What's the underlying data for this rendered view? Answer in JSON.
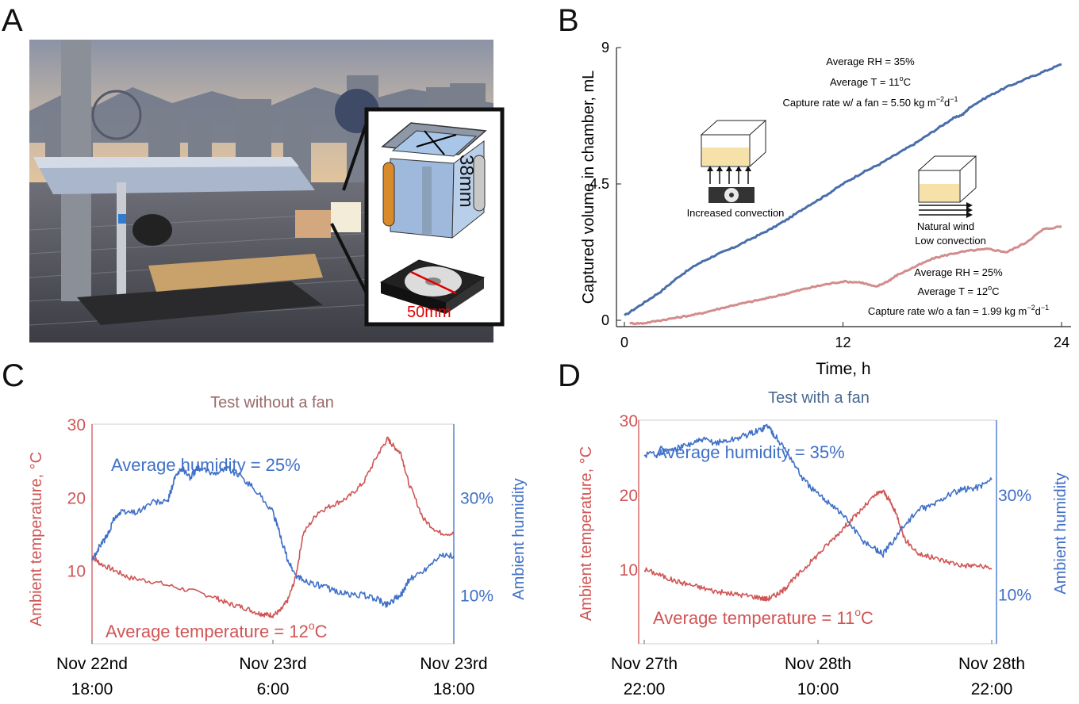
{
  "panels": {
    "a": "A",
    "b": "B",
    "c": "C",
    "d": "D"
  },
  "photo": {
    "inset_dim_height": "38mm",
    "inset_dim_width": "50mm",
    "colors": {
      "sky_top": "#8b93a6",
      "sky_bottom": "#e8c79a",
      "roof": "#56565c",
      "frame": "#111111",
      "dim_red": "#e00000"
    }
  },
  "chart_data": [
    {
      "id": "B",
      "type": "line",
      "xlabel": "Time, h",
      "ylabel": "Captured volume in chamber, mL",
      "xlim": [
        0,
        24
      ],
      "ylim": [
        0,
        9
      ],
      "xticks": [
        "0",
        "12",
        "24"
      ],
      "yticks": [
        "0",
        "4.5",
        "9"
      ],
      "series": [
        {
          "name": "with fan",
          "color": "#4a6eab",
          "x": [
            0,
            1,
            2,
            3,
            4,
            5,
            6,
            7,
            8,
            9,
            10,
            11,
            12,
            13,
            14,
            15,
            16,
            17,
            18,
            18.6,
            19,
            20,
            21,
            22,
            23,
            24
          ],
          "y": [
            0.15,
            0.55,
            0.95,
            1.45,
            1.85,
            2.15,
            2.4,
            2.7,
            3.0,
            3.35,
            3.75,
            4.1,
            4.5,
            4.85,
            5.15,
            5.5,
            5.85,
            6.25,
            6.65,
            6.8,
            7.05,
            7.4,
            7.7,
            7.95,
            8.2,
            8.45
          ]
        },
        {
          "name": "without fan",
          "color": "#d38c8c",
          "x": [
            0.3,
            1,
            2,
            3,
            4,
            5,
            6,
            7,
            8,
            9,
            10,
            11,
            12,
            13,
            13.8,
            14.5,
            15,
            16,
            17,
            18,
            19,
            20,
            21,
            22,
            23,
            24
          ],
          "y": [
            -0.1,
            -0.1,
            0.0,
            0.1,
            0.2,
            0.35,
            0.5,
            0.62,
            0.75,
            0.9,
            1.05,
            1.18,
            1.28,
            1.25,
            1.1,
            1.3,
            1.5,
            1.78,
            2.05,
            2.2,
            2.3,
            2.35,
            2.25,
            2.55,
            3.0,
            3.1
          ]
        }
      ],
      "annotations": {
        "rh_fan": "Average RH = 35%",
        "t_fan": "Average T = 11",
        "t_fan_deg": "o",
        "t_fan_unit": "C",
        "rate_fan_pre": "Capture rate w/ a fan = 5.50 kg m",
        "rate_fan_sup1": "−2",
        "rate_fan_d": "d",
        "rate_fan_sup2": "−1",
        "rh_nofan": "Average RH = 25%",
        "t_nofan": "Average T = 12",
        "t_nofan_deg": "o",
        "t_nofan_unit": "C",
        "rate_nofan_pre": "Capture rate w/o a fan = 1.99 kg m",
        "rate_nofan_sup1": "−2",
        "rate_nofan_d": "d",
        "rate_nofan_sup2": "−1",
        "fan_icon_label": "Increased convection",
        "wind_label_1": "Natural wind",
        "wind_label_2": "Low convection"
      }
    },
    {
      "id": "C",
      "type": "line",
      "title": "Test without a fan",
      "title_color": "#9a6a6a",
      "ylabel_left": "Ambient temperature, °C",
      "ylabel_right": "Ambient humidity",
      "left_color": "#d05555",
      "right_color": "#3f70c8",
      "xticks": [
        [
          "Nov 22nd",
          "18:00"
        ],
        [
          "Nov 23rd",
          "6:00"
        ],
        [
          "Nov 23rd",
          "18:00"
        ]
      ],
      "xlim": [
        0,
        24
      ],
      "ylim_left": [
        0,
        30
      ],
      "yticks_left": [
        "10",
        "20",
        "30"
      ],
      "ylim_right": [
        0,
        45
      ],
      "yticks_right": [
        "10%",
        "30%"
      ],
      "annotation_humidity": "Average humidity = 25%",
      "annotation_temp_pre": "Average temperature = 12",
      "annotation_temp_sup": "o",
      "annotation_temp_unit": "C",
      "series": [
        {
          "name": "temperature",
          "axis": "left",
          "x": [
            0,
            0.5,
            1.5,
            2.5,
            4,
            6,
            8,
            9,
            10,
            11,
            11.5,
            12,
            12.5,
            13,
            13.5,
            14,
            15,
            16,
            17,
            18,
            19,
            19.6,
            20,
            20.5,
            21,
            22,
            23,
            24
          ],
          "y": [
            12,
            11,
            10,
            9,
            8.5,
            7.5,
            6.5,
            5.5,
            5,
            4.2,
            4.0,
            3.9,
            4.5,
            6,
            9,
            15,
            18,
            19,
            20,
            22,
            26,
            28,
            27,
            26,
            22,
            17,
            15.2,
            15
          ]
        },
        {
          "name": "humidity",
          "axis": "right",
          "x": [
            0,
            0.5,
            1,
            1.5,
            2,
            3,
            4,
            5,
            5.5,
            6,
            6.5,
            7,
            8,
            9,
            10,
            11,
            12,
            12.5,
            13,
            13.5,
            14,
            15,
            16,
            17,
            18,
            19,
            19.5,
            20,
            20.5,
            21,
            22,
            23,
            24
          ],
          "y": [
            17,
            20,
            22,
            26,
            27,
            27,
            29,
            29,
            34,
            36,
            34,
            36,
            35,
            36,
            34,
            31,
            27,
            22,
            17,
            14,
            13,
            12,
            11,
            10,
            10,
            9,
            8,
            9,
            10,
            13,
            15,
            18,
            18
          ]
        }
      ]
    },
    {
      "id": "D",
      "type": "line",
      "title": "Test with a fan",
      "title_color": "#4a6890",
      "ylabel_left": "Ambient temperature, °C",
      "ylabel_right": "Ambient humidity",
      "left_color": "#d05555",
      "right_color": "#3f70c8",
      "xticks": [
        [
          "Nov 27th",
          "22:00"
        ],
        [
          "Nov 28th",
          "10:00"
        ],
        [
          "Nov 28th",
          "22:00"
        ]
      ],
      "xlim": [
        0,
        24
      ],
      "ylim_left": [
        0,
        30
      ],
      "yticks_left": [
        "10",
        "20",
        "30"
      ],
      "ylim_right": [
        0,
        45
      ],
      "yticks_right": [
        "10%",
        "30%"
      ],
      "annotation_humidity": "Average humidity = 35%",
      "annotation_temp_pre": "Average temperature = 11",
      "annotation_temp_sup": "o",
      "annotation_temp_unit": "C",
      "series": [
        {
          "name": "temperature",
          "axis": "left",
          "x": [
            0,
            1,
            2,
            3,
            4,
            5,
            6,
            7,
            8,
            8.5,
            9,
            9.5,
            10,
            11,
            12,
            13,
            14,
            15,
            16,
            16.5,
            17,
            17.5,
            18,
            19,
            20,
            21,
            22,
            23,
            24
          ],
          "y": [
            10,
            9.3,
            8.5,
            8,
            7.5,
            7,
            6.7,
            6.5,
            6.2,
            6,
            6.5,
            7,
            8,
            10,
            12,
            14,
            16,
            18,
            20,
            20.5,
            19,
            17,
            14,
            12,
            11.5,
            11,
            10.5,
            10.5,
            10
          ]
        },
        {
          "name": "humidity",
          "axis": "right",
          "x": [
            0,
            1,
            2,
            3,
            4,
            5,
            6,
            7,
            8,
            8.5,
            9,
            10,
            11,
            12,
            13,
            14,
            15,
            16,
            16.5,
            17,
            18,
            19,
            20,
            21,
            22,
            23,
            24
          ],
          "y": [
            38,
            38.5,
            39,
            40,
            41,
            40.5,
            41,
            42,
            43,
            44,
            42,
            38,
            33,
            30,
            28,
            25,
            21,
            19,
            18,
            20,
            24,
            27,
            28,
            30,
            31,
            31.5,
            33
          ]
        }
      ]
    }
  ]
}
